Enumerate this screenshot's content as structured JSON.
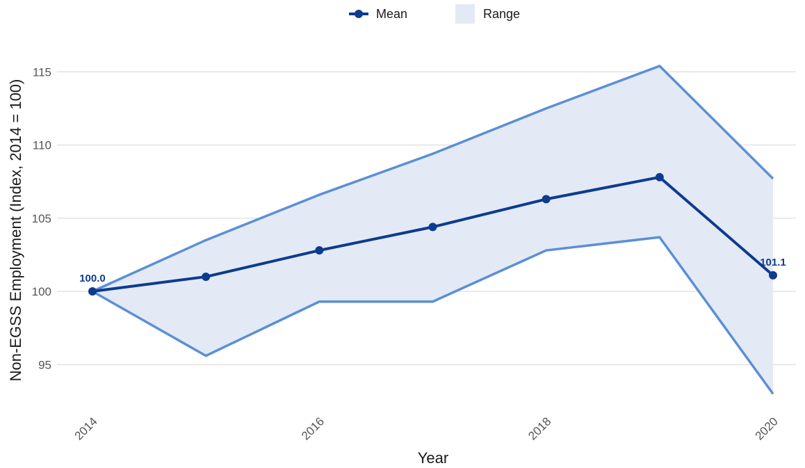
{
  "chart_data": {
    "type": "line",
    "xlabel": "Year",
    "ylabel": "Non-EGSS Employment (Index, 2014 = 100)",
    "xlim": [
      2014,
      2020
    ],
    "ylim": [
      92.5,
      116.5
    ],
    "x_ticks": [
      2014,
      2016,
      2018,
      2020
    ],
    "y_ticks": [
      95,
      100,
      105,
      110,
      115
    ],
    "grid": "horizontal",
    "legend_position": "top-center",
    "x": [
      2014,
      2015,
      2016,
      2017,
      2018,
      2019,
      2020
    ],
    "series": [
      {
        "name": "Mean",
        "values": [
          100.0,
          101.0,
          102.8,
          104.4,
          106.3,
          107.8,
          101.1
        ],
        "color": "#0d3b8f"
      }
    ],
    "range": {
      "name": "Range",
      "lower": [
        100.0,
        95.6,
        99.3,
        99.3,
        102.8,
        103.7,
        93.0
      ],
      "upper": [
        100.0,
        103.5,
        106.6,
        109.4,
        112.5,
        115.4,
        107.7
      ],
      "fill_color": "#e3eaf5",
      "line_color": "#5b8fd6"
    },
    "annotations": [
      {
        "x": 2014,
        "y": 100.0,
        "text": "100.0"
      },
      {
        "x": 2020,
        "y": 101.1,
        "text": "101.1"
      }
    ]
  }
}
